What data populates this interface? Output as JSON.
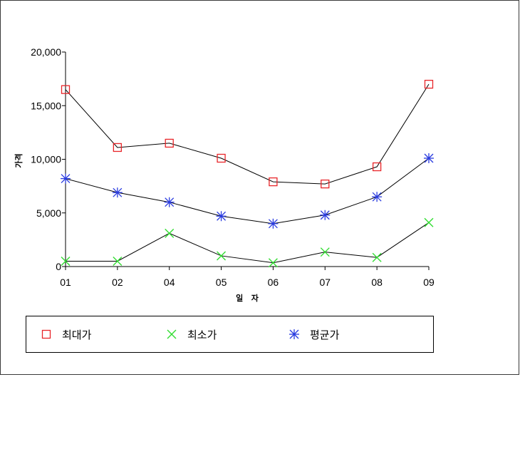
{
  "chart_data": {
    "type": "line",
    "categories": [
      "01",
      "02",
      "04",
      "05",
      "06",
      "07",
      "08",
      "09"
    ],
    "series": [
      {
        "name": "최대가",
        "values": [
          16500,
          11100,
          11500,
          10100,
          7900,
          7700,
          9300,
          17000
        ],
        "color": "#e8262a",
        "marker": "square"
      },
      {
        "name": "최소가",
        "values": [
          500,
          500,
          3100,
          1000,
          350,
          1350,
          850,
          4100
        ],
        "color": "#33dd33",
        "marker": "x"
      },
      {
        "name": "평균가",
        "values": [
          8200,
          6900,
          6000,
          4700,
          4000,
          4800,
          6500,
          10100
        ],
        "color": "#2a3ce0",
        "marker": "asterisk"
      }
    ],
    "ylim": [
      0,
      20000
    ],
    "yticks": [
      0,
      5000,
      10000,
      15000,
      20000
    ],
    "yticklabels": [
      "0",
      "5,000",
      "10,000",
      "15,000",
      "20,000"
    ],
    "xlabel": "일 자",
    "ylabel": "가격",
    "line_color": "#000000",
    "grid": false,
    "legend_position": "bottom"
  }
}
